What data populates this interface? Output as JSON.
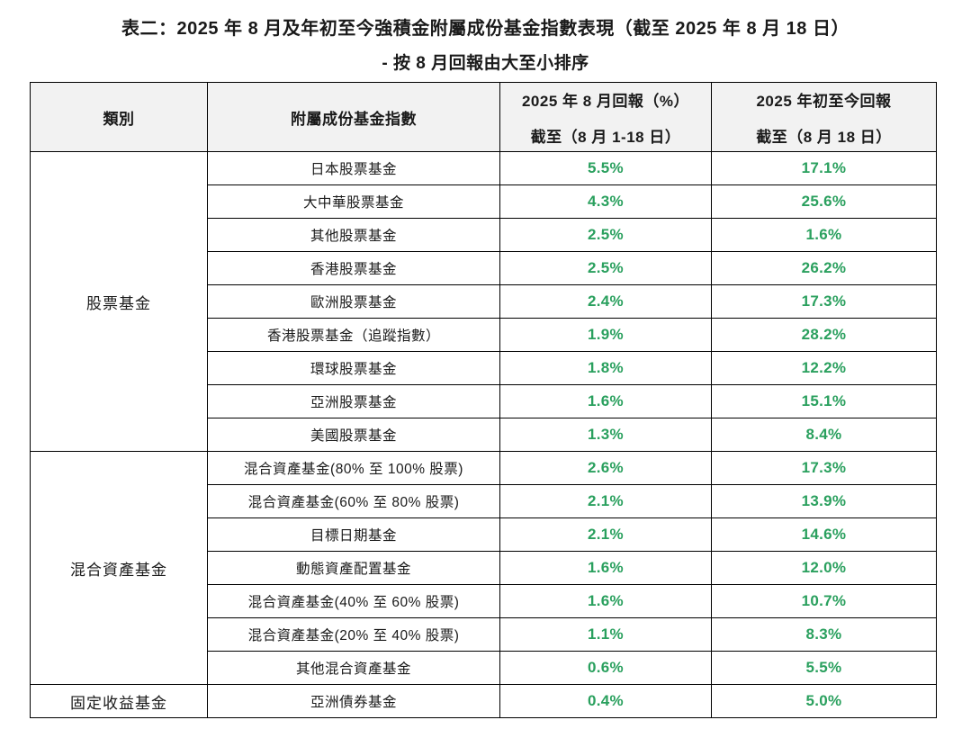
{
  "page": {
    "title": "表二：2025 年 8 月及年初至今強積金附屬成份基金指數表現（截至 2025 年 8 月 18 日）",
    "subtitle": "- 按 8 月回報由大至小排序"
  },
  "colors": {
    "positive_return_green": "#2aa05e",
    "header_background": "#f2f2f2",
    "border": "#000000",
    "text": "#1a1a1a"
  },
  "chart_data": {
    "type": "table",
    "title": "表二：2025 年 8 月及年初至今強積金附屬成份基金指數表現（截至 2025 年 8 月 18 日）",
    "subtitle": "- 按 8 月回報由大至小排序",
    "sort_note": "按 8 月回報由大至小排序",
    "columns": [
      {
        "key": "category",
        "lines": [
          "類別"
        ]
      },
      {
        "key": "fund_index",
        "lines": [
          "附屬成份基金指數"
        ]
      },
      {
        "key": "aug_return",
        "lines": [
          "2025 年 8 月回報（%）",
          "截至（8 月 1-18 日）"
        ]
      },
      {
        "key": "ytd_return",
        "lines": [
          "2025 年初至今回報",
          "截至（8 月 18 日）"
        ]
      }
    ],
    "groups": [
      {
        "category": "股票基金",
        "rows": [
          {
            "name": "日本股票基金",
            "aug_return": "5.5%",
            "ytd_return": "17.1%"
          },
          {
            "name": "大中華股票基金",
            "aug_return": "4.3%",
            "ytd_return": "25.6%"
          },
          {
            "name": "其他股票基金",
            "aug_return": "2.5%",
            "ytd_return": "1.6%"
          },
          {
            "name": "香港股票基金",
            "aug_return": "2.5%",
            "ytd_return": "26.2%"
          },
          {
            "name": "歐洲股票基金",
            "aug_return": "2.4%",
            "ytd_return": "17.3%"
          },
          {
            "name": "香港股票基金（追蹤指數）",
            "aug_return": "1.9%",
            "ytd_return": "28.2%"
          },
          {
            "name": "環球股票基金",
            "aug_return": "1.8%",
            "ytd_return": "12.2%"
          },
          {
            "name": "亞洲股票基金",
            "aug_return": "1.6%",
            "ytd_return": "15.1%"
          },
          {
            "name": "美國股票基金",
            "aug_return": "1.3%",
            "ytd_return": "8.4%"
          }
        ]
      },
      {
        "category": "混合資產基金",
        "rows": [
          {
            "name": "混合資產基金(80% 至 100% 股票)",
            "aug_return": "2.6%",
            "ytd_return": "17.3%"
          },
          {
            "name": "混合資產基金(60% 至 80% 股票)",
            "aug_return": "2.1%",
            "ytd_return": "13.9%"
          },
          {
            "name": "目標日期基金",
            "aug_return": "2.1%",
            "ytd_return": "14.6%"
          },
          {
            "name": "動態資產配置基金",
            "aug_return": "1.6%",
            "ytd_return": "12.0%"
          },
          {
            "name": "混合資產基金(40% 至 60% 股票)",
            "aug_return": "1.6%",
            "ytd_return": "10.7%"
          },
          {
            "name": "混合資產基金(20% 至 40% 股票)",
            "aug_return": "1.1%",
            "ytd_return": "8.3%"
          },
          {
            "name": "其他混合資產基金",
            "aug_return": "0.6%",
            "ytd_return": "5.5%"
          }
        ]
      },
      {
        "category": "固定收益基金",
        "rows": [
          {
            "name": "亞洲債券基金",
            "aug_return": "0.4%",
            "ytd_return": "5.0%"
          }
        ]
      }
    ]
  }
}
